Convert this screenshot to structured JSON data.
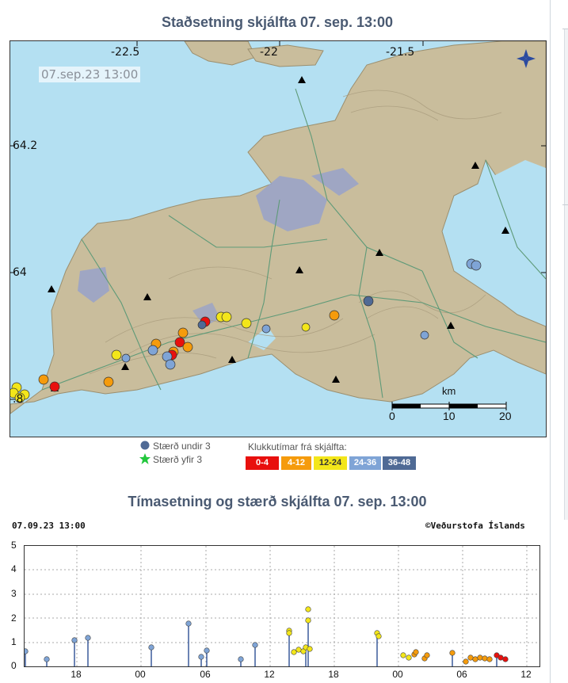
{
  "map": {
    "title": "Staðsetning skjálfta   07. sep. 13:00",
    "timestamp": "07.sep.23  13:00",
    "lon_labels": [
      "-22.5",
      "-22",
      "-21.5"
    ],
    "lat_labels": [
      "64.2",
      "64",
      ".8"
    ],
    "scale": {
      "unit": "km",
      "ticks": [
        "0",
        "10",
        "20"
      ]
    },
    "compass_icon": "compass-rose-icon",
    "triangle_icon": "station-triangle-icon"
  },
  "legend": {
    "under3": "Stærð undir 3",
    "over3": "Stærð yfir 3",
    "hours_label": "Klukkutímar frá skjálfta:",
    "bins": [
      {
        "label": "0-4",
        "color": "#e8100e"
      },
      {
        "label": "4-12",
        "color": "#f59b0c"
      },
      {
        "label": "12-24",
        "color": "#f3e61a"
      },
      {
        "label": "24-36",
        "color": "#7fa4d6"
      },
      {
        "label": "36-48",
        "color": "#4f6a95"
      }
    ],
    "star_color": "#22c73c",
    "dot_color": "#4f6a95"
  },
  "timeline": {
    "title": "Tímasetning og stærð skjálfta   07. sep. 13:00",
    "stamp_left": "07.09.23 13:00",
    "stamp_right": "©Veðurstofa Íslands",
    "y_ticks": [
      "5",
      "4",
      "3",
      "2",
      "1",
      "0"
    ],
    "x_ticks": [
      "18",
      "00",
      "06",
      "12",
      "18",
      "00",
      "06",
      "12"
    ]
  }
}
